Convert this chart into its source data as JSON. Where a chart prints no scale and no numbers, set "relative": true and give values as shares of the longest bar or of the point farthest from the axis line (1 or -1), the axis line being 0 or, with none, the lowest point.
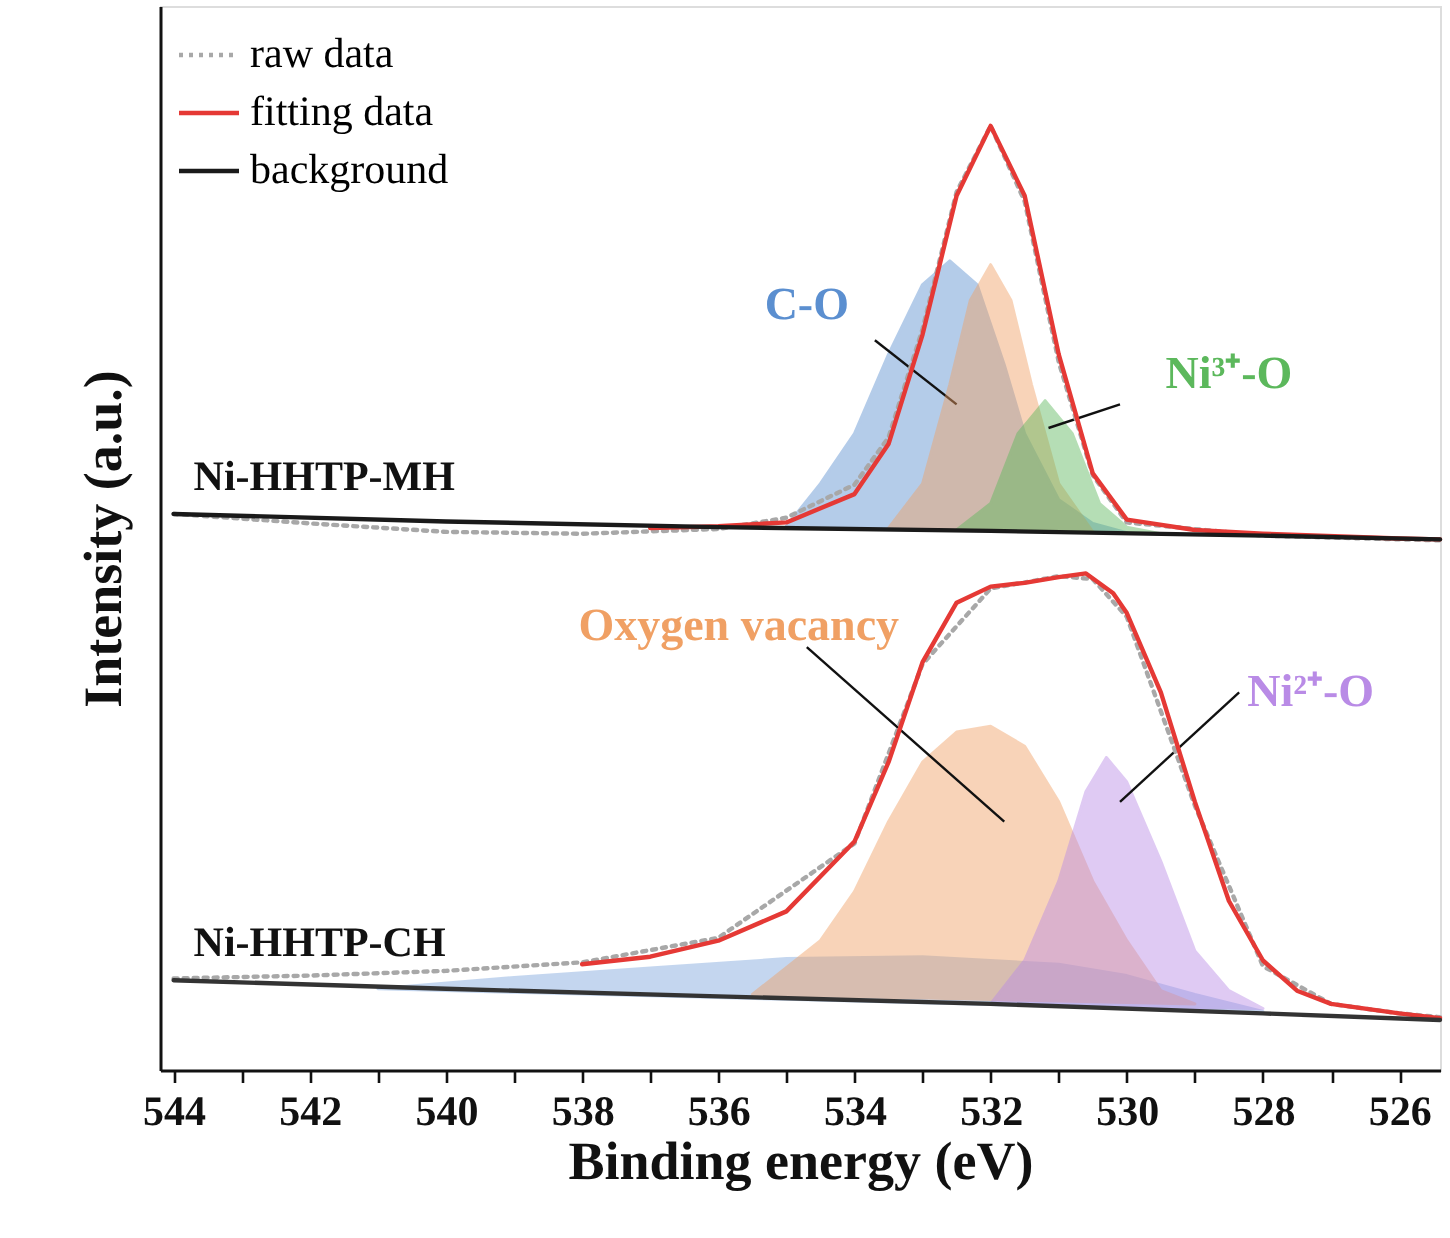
{
  "chart_data": {
    "type": "line",
    "relative": true,
    "xlabel": "Binding energy (eV)",
    "ylabel": "Intensity (a.u.)",
    "xlim": [
      544.2,
      525.4
    ],
    "xticks": [
      544,
      {
        "value": 543,
        "label": null
      },
      542,
      {
        "value": 541,
        "label": null
      },
      540,
      {
        "value": 539,
        "label": null
      },
      538,
      {
        "value": 537,
        "label": null
      },
      536,
      {
        "value": 535,
        "label": null
      },
      534,
      {
        "value": 533,
        "label": null
      },
      532,
      {
        "value": 531,
        "label": null
      },
      530,
      {
        "value": 529,
        "label": null
      },
      528,
      {
        "value": 527,
        "label": null
      },
      526
    ],
    "grid": false,
    "legend": "top left",
    "annotations": [
      "Ni-HHTP-MH",
      "Ni-HHTP-CH"
    ],
    "series": [
      {
        "type": "area",
        "name": "C-O",
        "color": "#5b8fd0",
        "x": [
          535,
          534.5,
          534,
          533.5,
          533,
          532.6,
          532.2,
          531.8,
          531.5,
          531,
          530.5,
          530
        ],
        "values": [
          0.576,
          0.621,
          0.674,
          0.758,
          0.832,
          0.857,
          0.832,
          0.747,
          0.674,
          0.604,
          0.579,
          0.569
        ]
      },
      {
        "type": "area",
        "color": "#f0a064",
        "x": [
          533.5,
          533,
          532.6,
          532.3,
          532,
          531.7,
          531.4,
          531,
          530.5
        ],
        "values": [
          0.574,
          0.621,
          0.726,
          0.815,
          0.853,
          0.815,
          0.726,
          0.621,
          0.57
        ]
      },
      {
        "type": "area",
        "name": "Ni³⁺-O",
        "color": "#5cb85c",
        "x": [
          532.5,
          532,
          531.6,
          531.2,
          530.8,
          530.4,
          530,
          529.5
        ],
        "values": [
          0.572,
          0.6,
          0.674,
          0.709,
          0.674,
          0.6,
          0.575,
          0.568
        ]
      },
      {
        "name": "raw data",
        "color": "#a8a8a8",
        "line_style": "dotted",
        "x": [
          544,
          542,
          540,
          538,
          536,
          535,
          534,
          533.5,
          533,
          532.5,
          532,
          531.5,
          531,
          530.5,
          530,
          528,
          526,
          525.4
        ],
        "values": [
          0.589,
          0.579,
          0.57,
          0.568,
          0.573,
          0.585,
          0.62,
          0.67,
          0.785,
          0.93,
          1.0,
          0.92,
          0.75,
          0.63,
          0.58,
          0.566,
          0.562,
          0.561
        ]
      },
      {
        "name": "fitting data",
        "color": "#e53935",
        "line_style": "solid",
        "x": [
          537,
          536,
          535,
          534,
          533.5,
          533,
          532.5,
          532,
          531.5,
          531,
          530.5,
          530,
          529,
          528,
          526,
          525.4
        ],
        "values": [
          0.574,
          0.576,
          0.58,
          0.61,
          0.663,
          0.779,
          0.926,
          1.0,
          0.926,
          0.758,
          0.632,
          0.583,
          0.572,
          0.568,
          0.563,
          0.562
        ]
      },
      {
        "name": "background",
        "color": "#1a1a1a",
        "line_style": "solid",
        "x": [
          544,
          540,
          536,
          532,
          528,
          525.4
        ],
        "values": [
          0.589,
          0.581,
          0.575,
          0.571,
          0.566,
          0.562
        ]
      },
      {
        "type": "area",
        "color": "#7ea6dc",
        "x": [
          541,
          539,
          537,
          535,
          533,
          531,
          530,
          529,
          528
        ],
        "values": [
          0.086,
          0.098,
          0.108,
          0.118,
          0.12,
          0.112,
          0.1,
          0.08,
          0.062
        ]
      },
      {
        "type": "area",
        "name": "Oxygen vacancy",
        "color": "#f0a064",
        "x": [
          535.5,
          534.5,
          534,
          533.5,
          533,
          532.5,
          532,
          531.5,
          531,
          530.5,
          530,
          529.5,
          529
        ],
        "values": [
          0.08,
          0.137,
          0.189,
          0.263,
          0.326,
          0.358,
          0.364,
          0.343,
          0.284,
          0.2,
          0.137,
          0.084,
          0.07
        ]
      },
      {
        "type": "area",
        "name": "Ni²⁺-O",
        "color": "#b98be6",
        "x": [
          532,
          531.5,
          531,
          530.6,
          530.3,
          530,
          529.5,
          529,
          528.5,
          528
        ],
        "values": [
          0.07,
          0.116,
          0.2,
          0.295,
          0.331,
          0.305,
          0.221,
          0.126,
          0.084,
          0.065
        ]
      },
      {
        "color": "#a8a8a8",
        "line_style": "dotted",
        "x": [
          544,
          542,
          540,
          538,
          536,
          534,
          533,
          532,
          531,
          530.5,
          530,
          529,
          528,
          527,
          526,
          525.4
        ],
        "values": [
          0.097,
          0.1,
          0.105,
          0.114,
          0.14,
          0.24,
          0.43,
          0.51,
          0.523,
          0.52,
          0.48,
          0.28,
          0.11,
          0.07,
          0.06,
          0.056
        ]
      },
      {
        "color": "#e53935",
        "line_style": "solid",
        "x": [
          538,
          537,
          536,
          535,
          534,
          533.5,
          533,
          532.5,
          532,
          531.5,
          531,
          530.6,
          530.2,
          530,
          529.5,
          529,
          528.5,
          528,
          527.5,
          527,
          526,
          525.4
        ],
        "values": [
          0.112,
          0.12,
          0.137,
          0.168,
          0.242,
          0.326,
          0.432,
          0.495,
          0.512,
          0.516,
          0.522,
          0.526,
          0.505,
          0.484,
          0.4,
          0.284,
          0.179,
          0.116,
          0.084,
          0.07,
          0.06,
          0.055
        ]
      },
      {
        "color": "#333333",
        "line_style": "solid",
        "x": [
          544,
          540,
          536,
          532,
          528,
          525.4
        ],
        "values": [
          0.095,
          0.086,
          0.078,
          0.07,
          0.06,
          0.053
        ]
      }
    ]
  }
}
